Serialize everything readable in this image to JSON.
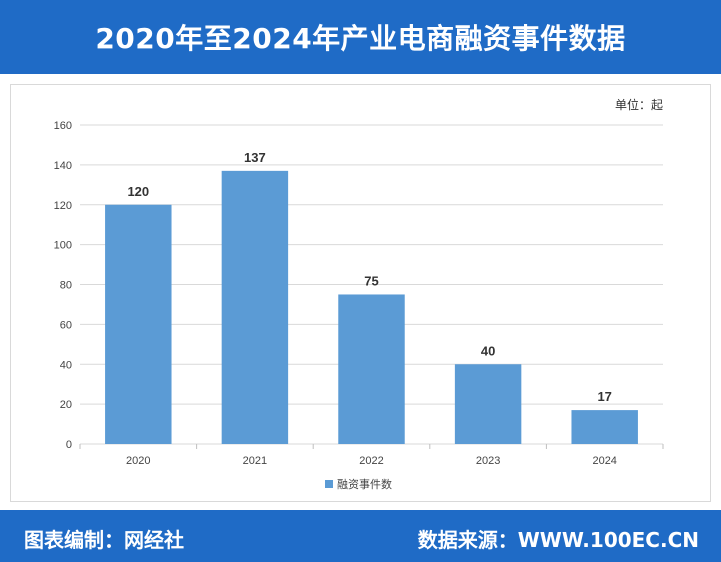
{
  "header": {
    "title": "2020年至2024年产业电商融资事件数据"
  },
  "unit_label": "单位：起",
  "footer": {
    "left": "图表编制：网经社",
    "right": "数据来源：WWW.100EC.CN"
  },
  "colors": {
    "bar": "#5b9bd5",
    "header": "#1f6bc6",
    "grid": "#d9d9d9"
  },
  "chart_data": {
    "type": "bar",
    "categories": [
      "2020",
      "2021",
      "2022",
      "2023",
      "2024"
    ],
    "series": [
      {
        "name": "融资事件数",
        "values": [
          120,
          137,
          75,
          40,
          17
        ]
      }
    ],
    "ylim": [
      0,
      160
    ],
    "yticks": [
      0,
      20,
      40,
      60,
      80,
      100,
      120,
      140,
      160
    ],
    "grid": true,
    "legend": "bottom"
  }
}
